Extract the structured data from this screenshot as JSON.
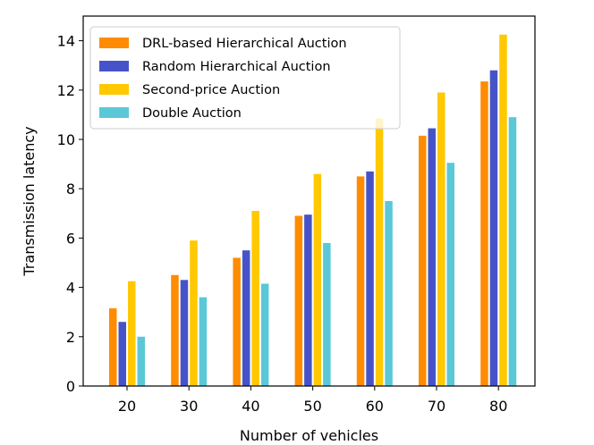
{
  "chart_data": {
    "type": "bar",
    "title": "",
    "xlabel": "Number of vehicles",
    "ylabel": "Transmission latency",
    "categories": [
      "20",
      "30",
      "40",
      "50",
      "60",
      "70",
      "80"
    ],
    "ylim": [
      0,
      15
    ],
    "yticks": [
      0,
      2,
      4,
      6,
      8,
      10,
      12,
      14
    ],
    "grid": false,
    "legend_position": "top-left",
    "series": [
      {
        "name": "DRL-based Hierarchical Auction",
        "color": "#FF8C00",
        "values": [
          3.15,
          4.5,
          5.2,
          6.9,
          8.5,
          10.15,
          12.35
        ]
      },
      {
        "name": "Random Hierarchical Auction",
        "color": "#4653C8",
        "values": [
          2.6,
          4.3,
          5.5,
          6.95,
          8.7,
          10.45,
          12.8
        ]
      },
      {
        "name": "Second-price Auction",
        "color": "#FFC800",
        "values": [
          4.25,
          5.9,
          7.1,
          8.6,
          10.85,
          11.9,
          14.25
        ]
      },
      {
        "name": "Double Auction",
        "color": "#5BC8D8",
        "values": [
          2.0,
          3.6,
          4.15,
          5.8,
          7.5,
          9.05,
          10.9
        ]
      }
    ]
  }
}
